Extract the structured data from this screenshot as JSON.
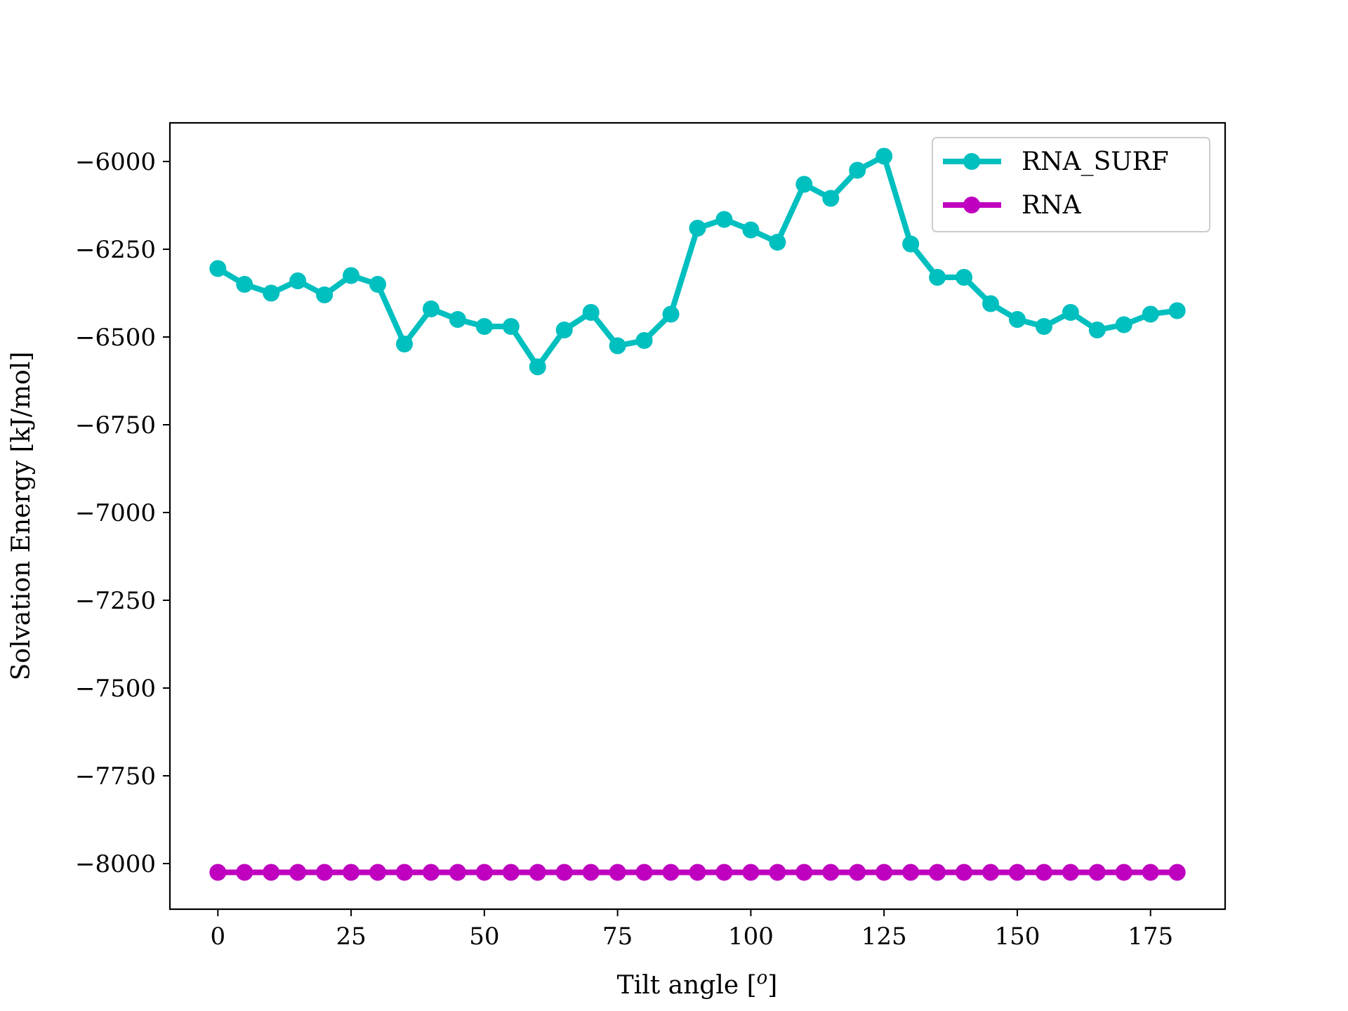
{
  "chart_data": {
    "type": "line",
    "title": "",
    "xlabel": "Tilt angle [",
    "xlabel_sup": "o",
    "xlabel_end": "]",
    "ylabel": "Solvation Energy [kJ/mol]",
    "xlim": [
      -9,
      189
    ],
    "ylim": [
      -8130,
      -5890
    ],
    "xticks": [
      0,
      25,
      50,
      75,
      100,
      125,
      150,
      175
    ],
    "yticks": [
      -6000,
      -6250,
      -6500,
      -6750,
      -7000,
      -7250,
      -7500,
      -7750,
      -8000
    ],
    "ytick_labels": [
      "−6000",
      "−6250",
      "−6500",
      "−6750",
      "−7000",
      "−7250",
      "−7500",
      "−7750",
      "−8000"
    ],
    "grid": false,
    "legend_position": "upper-right",
    "x": [
      0,
      5,
      10,
      15,
      20,
      25,
      30,
      35,
      40,
      45,
      50,
      55,
      60,
      65,
      70,
      75,
      80,
      85,
      90,
      95,
      100,
      105,
      110,
      115,
      120,
      125,
      130,
      135,
      140,
      145,
      150,
      155,
      160,
      165,
      170,
      175,
      180
    ],
    "series": [
      {
        "name": "RNA_SURF",
        "color": "#00bfbf",
        "values": [
          -6305,
          -6350,
          -6375,
          -6340,
          -6380,
          -6325,
          -6350,
          -6520,
          -6420,
          -6450,
          -6470,
          -6470,
          -6585,
          -6480,
          -6430,
          -6525,
          -6510,
          -6435,
          -6190,
          -6165,
          -6195,
          -6230,
          -6065,
          -6105,
          -6025,
          -5985,
          -6235,
          -6330,
          -6330,
          -6405,
          -6450,
          -6470,
          -6430,
          -6480,
          -6465,
          -6435,
          -6425
        ]
      },
      {
        "name": "RNA",
        "color": "#bf00bf",
        "values": [
          -8025,
          -8025,
          -8025,
          -8025,
          -8025,
          -8025,
          -8025,
          -8025,
          -8025,
          -8025,
          -8025,
          -8025,
          -8025,
          -8025,
          -8025,
          -8025,
          -8025,
          -8025,
          -8025,
          -8025,
          -8025,
          -8025,
          -8025,
          -8025,
          -8025,
          -8025,
          -8025,
          -8025,
          -8025,
          -8025,
          -8025,
          -8025,
          -8025,
          -8025,
          -8025,
          -8025,
          -8025
        ]
      }
    ]
  }
}
